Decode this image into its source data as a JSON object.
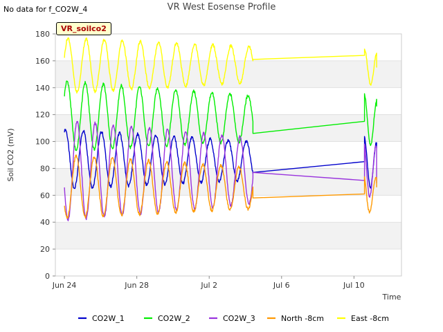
{
  "header": {
    "no_data": "No data for f_CO2W_4",
    "badge": "VR_soilco2"
  },
  "colors": {
    "CO2W_1": "#0000cc",
    "CO2W_2": "#00ee00",
    "CO2W_3": "#9933dd",
    "North -8cm": "#ff9900",
    "East -8cm": "#ffff00",
    "band": "#f2f2f2",
    "grid": "#dcdcdc"
  },
  "chart_data": {
    "type": "line",
    "title": "VR West Eosense Profile",
    "xlabel": "Time",
    "ylabel": "Soil CO2 (mV)",
    "ylim": [
      0,
      180
    ],
    "yticks": [
      0,
      20,
      40,
      60,
      80,
      100,
      120,
      140,
      160,
      180
    ],
    "xlim": [
      "2022-06-23T12:00",
      "2022-07-12T15:00"
    ],
    "xticks": [
      "Jun 24",
      "Jun 28",
      "Jul 2",
      "Jul 6",
      "Jul 10"
    ],
    "grid": "alternating horizontal bands",
    "legend": "bottom",
    "diurnal_period_days": 1,
    "data_gap": {
      "start": "2022-07-04T10:00",
      "end": "2022-07-10T14:00"
    },
    "series": [
      {
        "name": "CO2W_1",
        "x": [
          "2022-06-24T00:00",
          "2022-07-04T10:00",
          "2022-07-10T14:00",
          "2022-07-11T06:00"
        ],
        "y": [
          105,
          77,
          85,
          95
        ],
        "oscillation": {
          "min": 65,
          "max": 109,
          "amplitude_late": 20,
          "center_late": 84
        }
      },
      {
        "name": "CO2W_2",
        "x": [
          "2022-06-24T00:00",
          "2022-07-04T10:00",
          "2022-07-10T14:00",
          "2022-07-11T06:00"
        ],
        "y": [
          138,
          106,
          115,
          126
        ],
        "oscillation": {
          "min": 93,
          "max": 145,
          "amplitude_late": 20,
          "center_late": 115
        }
      },
      {
        "name": "CO2W_3",
        "x": [
          "2022-06-24T00:00",
          "2022-07-04T10:00",
          "2022-07-10T14:00",
          "2022-07-11T06:00"
        ],
        "y": [
          52,
          77,
          71,
          69
        ],
        "oscillation": {
          "min": 41,
          "max": 116,
          "amplitude_late": 22,
          "center_late": 79
        }
      },
      {
        "name": "North -8cm",
        "x": [
          "2022-06-24T00:00",
          "2022-07-04T10:00",
          "2022-07-10T14:00",
          "2022-07-11T06:00"
        ],
        "y": [
          84,
          58,
          61,
          66
        ],
        "oscillation": {
          "min": 43,
          "max": 90,
          "amplitude_late": 15,
          "center_late": 61
        }
      },
      {
        "name": "East -8cm",
        "x": [
          "2022-06-24T00:00",
          "2022-07-04T10:00",
          "2022-07-10T14:00",
          "2022-07-11T06:00"
        ],
        "y": [
          168,
          161,
          164,
          155
        ],
        "oscillation": {
          "min": 136,
          "max": 177,
          "amplitude_late": 14,
          "center_late": 155
        }
      }
    ]
  }
}
